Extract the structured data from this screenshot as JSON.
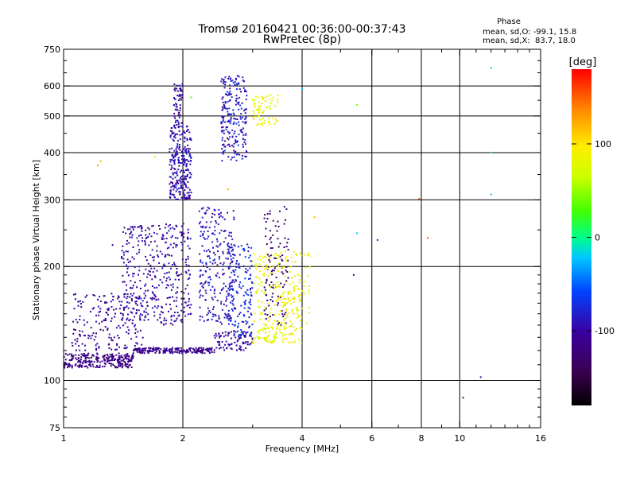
{
  "chart_data": {
    "type": "scatter",
    "title": "Tromsø 20160421 00:36:00-00:37:43",
    "subtitle": "RwPretec (8p)",
    "xlabel": "Frequency [MHz]",
    "ylabel": "Stationary phase Virtual Height [km]",
    "x_scale": "log",
    "y_scale": "log",
    "xlim": [
      1,
      16
    ],
    "ylim": [
      75,
      750
    ],
    "x_ticks": [
      1,
      2,
      4,
      6,
      8,
      10,
      16
    ],
    "x_tick_labels": [
      "1",
      "2",
      "4",
      "6",
      "8",
      "10",
      "16"
    ],
    "y_ticks": [
      75,
      100,
      200,
      300,
      400,
      500,
      600,
      750
    ],
    "y_tick_labels": [
      "75",
      "100",
      "200",
      "300",
      "400",
      "500",
      "600",
      "750"
    ],
    "grid": true,
    "phase_stats": {
      "heading": "Phase",
      "line_o": "mean, sd,O: -99.1, 15.8",
      "line_x": "mean, sd,X:  83.7, 18.0"
    },
    "colorbar": {
      "label": "[deg]",
      "min": -180,
      "max": 180,
      "ticks": [
        100,
        0,
        -100
      ],
      "tick_labels": [
        "100",
        "0",
        "-100"
      ]
    },
    "series": [
      {
        "mode": "O",
        "phase_mean": -99.1,
        "color": "#2233dd",
        "clusters": [
          {
            "f": [
              1.0,
              1.5
            ],
            "h": [
              108,
              118
            ],
            "n": 260,
            "phase": -115
          },
          {
            "f": [
              1.5,
              2.4
            ],
            "h": [
              118,
              122
            ],
            "n": 200,
            "phase": -110
          },
          {
            "f": [
              2.4,
              3.0
            ],
            "h": [
              120,
              135
            ],
            "n": 90,
            "phase": -100
          },
          {
            "f": [
              1.05,
              1.6
            ],
            "h": [
              120,
              170
            ],
            "n": 200,
            "phase": -105
          },
          {
            "f": [
              1.4,
              2.1
            ],
            "h": [
              140,
              260
            ],
            "n": 380,
            "phase": -100
          },
          {
            "f": [
              1.85,
              2.1
            ],
            "h": [
              300,
              470
            ],
            "n": 260,
            "phase": -95
          },
          {
            "f": [
              1.9,
              2.0
            ],
            "h": [
              470,
              610
            ],
            "n": 60,
            "phase": -100
          },
          {
            "f": [
              2.2,
              2.7
            ],
            "h": [
              140,
              290
            ],
            "n": 250,
            "phase": -90
          },
          {
            "f": [
              2.5,
              2.9
            ],
            "h": [
              380,
              640
            ],
            "n": 220,
            "phase": -85
          },
          {
            "f": [
              2.6,
              3.0
            ],
            "h": [
              130,
              230
            ],
            "n": 160,
            "phase": -75
          },
          {
            "f": [
              3.2,
              3.7
            ],
            "h": [
              140,
              290
            ],
            "n": 110,
            "phase": -130
          }
        ]
      },
      {
        "mode": "X",
        "phase_mean": 83.7,
        "color": "#dddd22",
        "clusters": [
          {
            "f": [
              3.0,
              3.5
            ],
            "h": [
              470,
              570
            ],
            "n": 70,
            "phase": 85
          },
          {
            "f": [
              3.0,
              3.6
            ],
            "h": [
              125,
              140
            ],
            "n": 70,
            "phase": 80
          },
          {
            "f": [
              3.0,
              4.2
            ],
            "h": [
              140,
              220
            ],
            "n": 170,
            "phase": 85
          },
          {
            "f": [
              3.5,
              4.0
            ],
            "h": [
              125,
              175
            ],
            "n": 70,
            "phase": 90
          }
        ]
      },
      {
        "mode": "isolated",
        "points": [
          {
            "f": 1.24,
            "h": 380,
            "phase": 120
          },
          {
            "f": 1.22,
            "h": 370,
            "phase": 130
          },
          {
            "f": 1.33,
            "h": 228,
            "phase": -100
          },
          {
            "f": 1.7,
            "h": 390,
            "phase": 60
          },
          {
            "f": 2.1,
            "h": 560,
            "phase": 30
          },
          {
            "f": 2.6,
            "h": 320,
            "phase": 120
          },
          {
            "f": 4.0,
            "h": 590,
            "phase": -20
          },
          {
            "f": 4.3,
            "h": 270,
            "phase": 120
          },
          {
            "f": 5.5,
            "h": 535,
            "phase": 40
          },
          {
            "f": 5.5,
            "h": 245,
            "phase": -20
          },
          {
            "f": 6.2,
            "h": 235,
            "phase": -70
          },
          {
            "f": 5.4,
            "h": 190,
            "phase": -110
          },
          {
            "f": 7.9,
            "h": 302,
            "phase": 150
          },
          {
            "f": 8.3,
            "h": 238,
            "phase": 150
          },
          {
            "f": 10.2,
            "h": 90,
            "phase": -130
          },
          {
            "f": 11.3,
            "h": 102,
            "phase": -90
          },
          {
            "f": 12.0,
            "h": 670,
            "phase": -20
          },
          {
            "f": 12.0,
            "h": 400,
            "phase": -10
          },
          {
            "f": 12.0,
            "h": 310,
            "phase": -20
          }
        ]
      }
    ]
  }
}
